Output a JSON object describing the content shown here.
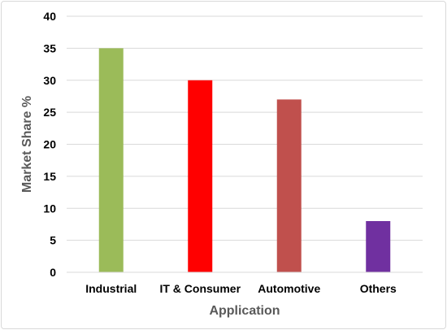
{
  "chart_data": {
    "type": "bar",
    "title": "",
    "xlabel": "Application",
    "ylabel": "Market Share %",
    "categories": [
      "Industrial",
      "IT & Consumer",
      "Automotive",
      "Others"
    ],
    "values": [
      35,
      30,
      27,
      8
    ],
    "colors": [
      "#9bbb59",
      "#ff0000",
      "#c0504d",
      "#7030a0"
    ],
    "ylim": [
      0,
      40
    ],
    "yticks": [
      "0",
      "5",
      "10",
      "15",
      "20",
      "25",
      "30",
      "35",
      "40"
    ],
    "grid": true,
    "legend": "none"
  }
}
